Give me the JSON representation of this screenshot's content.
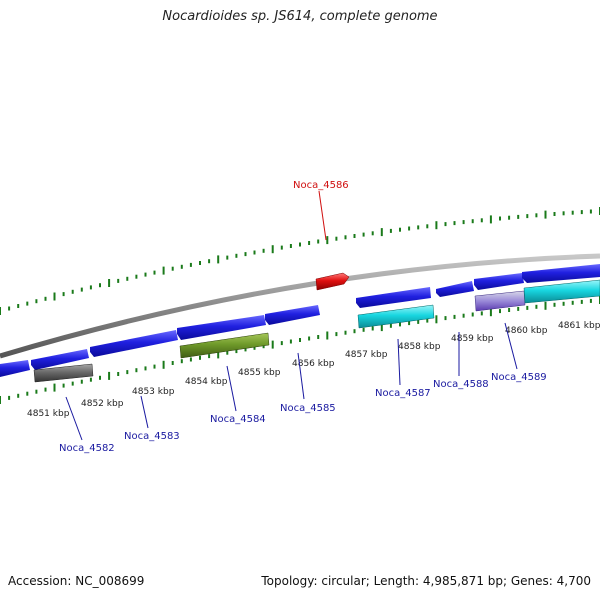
{
  "title": "Nocardioides sp. JS614, complete genome",
  "footer": {
    "accession": "Accession: NC_008699",
    "stats": "Topology: circular; Length: 4,985,871 bp; Genes: 4,700"
  },
  "colors": {
    "ticks": "#1a7a1a",
    "backbone": "#8a8a8a",
    "gene_blue": "#1515d8",
    "gene_cyan": "#18d6e0",
    "gene_olive": "#6f9a2a",
    "gene_gray": "#6a6a6a",
    "gene_red": "#e01010",
    "label_blue": "#1a1aa0",
    "label_red": "#d01010"
  },
  "scale": {
    "ticks": [
      {
        "label": "4851 kbp",
        "bp": 4851000
      },
      {
        "label": "4852 kbp",
        "bp": 4852000
      },
      {
        "label": "4853 kbp",
        "bp": 4853000
      },
      {
        "label": "4854 kbp",
        "bp": 4854000
      },
      {
        "label": "4855 kbp",
        "bp": 4855000
      },
      {
        "label": "4856 kbp",
        "bp": 4856000
      },
      {
        "label": "4857 kbp",
        "bp": 4857000
      },
      {
        "label": "4858 kbp",
        "bp": 4858000
      },
      {
        "label": "4859 kbp",
        "bp": 4859000
      },
      {
        "label": "4860 kbp",
        "bp": 4860000
      },
      {
        "label": "4861 kbp",
        "bp": 4861000
      }
    ]
  },
  "genes": {
    "forward": [
      {
        "name": "Noca_4586",
        "color": "red",
        "labeled": true
      }
    ],
    "reverse_inner": [
      {
        "color": "blue"
      },
      {
        "color": "blue"
      },
      {
        "color": "blue"
      },
      {
        "color": "blue"
      },
      {
        "color": "blue"
      },
      {
        "color": "blue"
      },
      {
        "color": "blue"
      },
      {
        "color": "blue"
      },
      {
        "color": "cyan"
      }
    ],
    "reverse_outer": [
      {
        "name": "Noca_4582",
        "color": "gray",
        "labeled": true
      },
      {
        "name": "Noca_4584",
        "color": "olive",
        "labeled": true
      },
      {
        "name": "Noca_4587",
        "color": "cyan",
        "labeled": true
      },
      {
        "name": "Noca_4589",
        "color": "lavender",
        "labeled": true
      }
    ]
  },
  "labels": [
    {
      "name": "Noca_4582"
    },
    {
      "name": "Noca_4583"
    },
    {
      "name": "Noca_4584"
    },
    {
      "name": "Noca_4585"
    },
    {
      "name": "Noca_4587"
    },
    {
      "name": "Noca_4588"
    },
    {
      "name": "Noca_4589"
    },
    {
      "name": "Noca_4586"
    }
  ]
}
